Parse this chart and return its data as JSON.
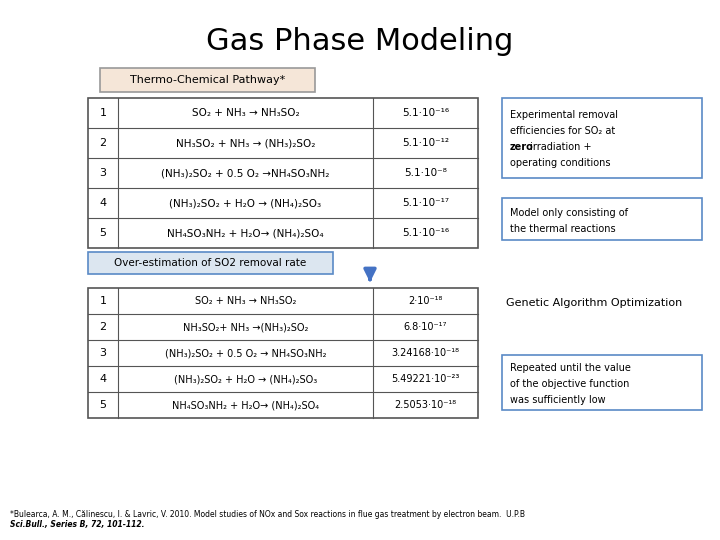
{
  "title": "Gas Phase Modeling",
  "bg": "#ffffff",
  "title_fontsize": 22,
  "thermo_label": "Thermo-Chemical Pathway*",
  "thermo_box_bg": "#f5e6d8",
  "thermo_box_edge": "#999999",
  "table1_rows": [
    [
      "1",
      "SO₂ + NH₃ → NH₃SO₂",
      "5.1·10⁻¹⁶"
    ],
    [
      "2",
      "NH₃SO₂ + NH₃ → (NH₃)₂SO₂",
      "5.1·10⁻¹²"
    ],
    [
      "3",
      "(NH₃)₂SO₂ + 0.5 O₂ →NH₄SO₃NH₂",
      "5.1·10⁻⁸"
    ],
    [
      "4",
      "(NH₃)₂SO₂ + H₂O → (NH₄)₂SO₃",
      "5.1·10⁻¹⁷"
    ],
    [
      "5",
      "NH₄SO₃NH₂ + H₂O→ (NH₄)₂SO₄",
      "5.1·10⁻¹⁶"
    ]
  ],
  "overest_label": "Over-estimation of SO2 removal rate",
  "overest_box_bg": "#dce6f0",
  "overest_box_edge": "#5a8ac6",
  "table2_rows": [
    [
      "1",
      "SO₂ + NH₃ → NH₃SO₂",
      "2·10⁻¹⁸"
    ],
    [
      "2",
      "NH₃SO₂+ NH₃ →(NH₃)₂SO₂",
      "6.8·10⁻¹⁷"
    ],
    [
      "3",
      "(NH₃)₂SO₂ + 0.5 O₂ → NH₄SO₃NH₂",
      "3.24168·10⁻¹⁸"
    ],
    [
      "4",
      "(NH₃)₂SO₂ + H₂O → (NH₄)₂SO₃",
      "5.49221·10⁻²³"
    ],
    [
      "5",
      "NH₄SO₃NH₂ + H₂O→ (NH₄)₂SO₄",
      "2.5053·10⁻¹⁸"
    ]
  ],
  "rb_edge": "#5a8ac6",
  "rb_bg": "#ffffff",
  "rb1_lines": [
    "Experimental removal",
    "efficiencies for SO₂ at",
    "zero irradiation +",
    "operating conditions"
  ],
  "rb1_bold_word": "zero",
  "rb2_lines": [
    "Model only consisting of",
    "the thermal reactions"
  ],
  "rb3_text": "Genetic Algorithm Optimization",
  "rb4_lines": [
    "Repeated until the value",
    "of the objective function",
    "was sufficiently low"
  ],
  "arrow_color": "#4472c4",
  "footnote1": "*Bulearca, A. M., Călinescu, I. & Lavric, V. 2010. Model studies of NOx and Sox reactions in flue gas treatment by electron beam.  U.P.B",
  "footnote2": "Sci.Bull., Series B, 72, 101-112."
}
